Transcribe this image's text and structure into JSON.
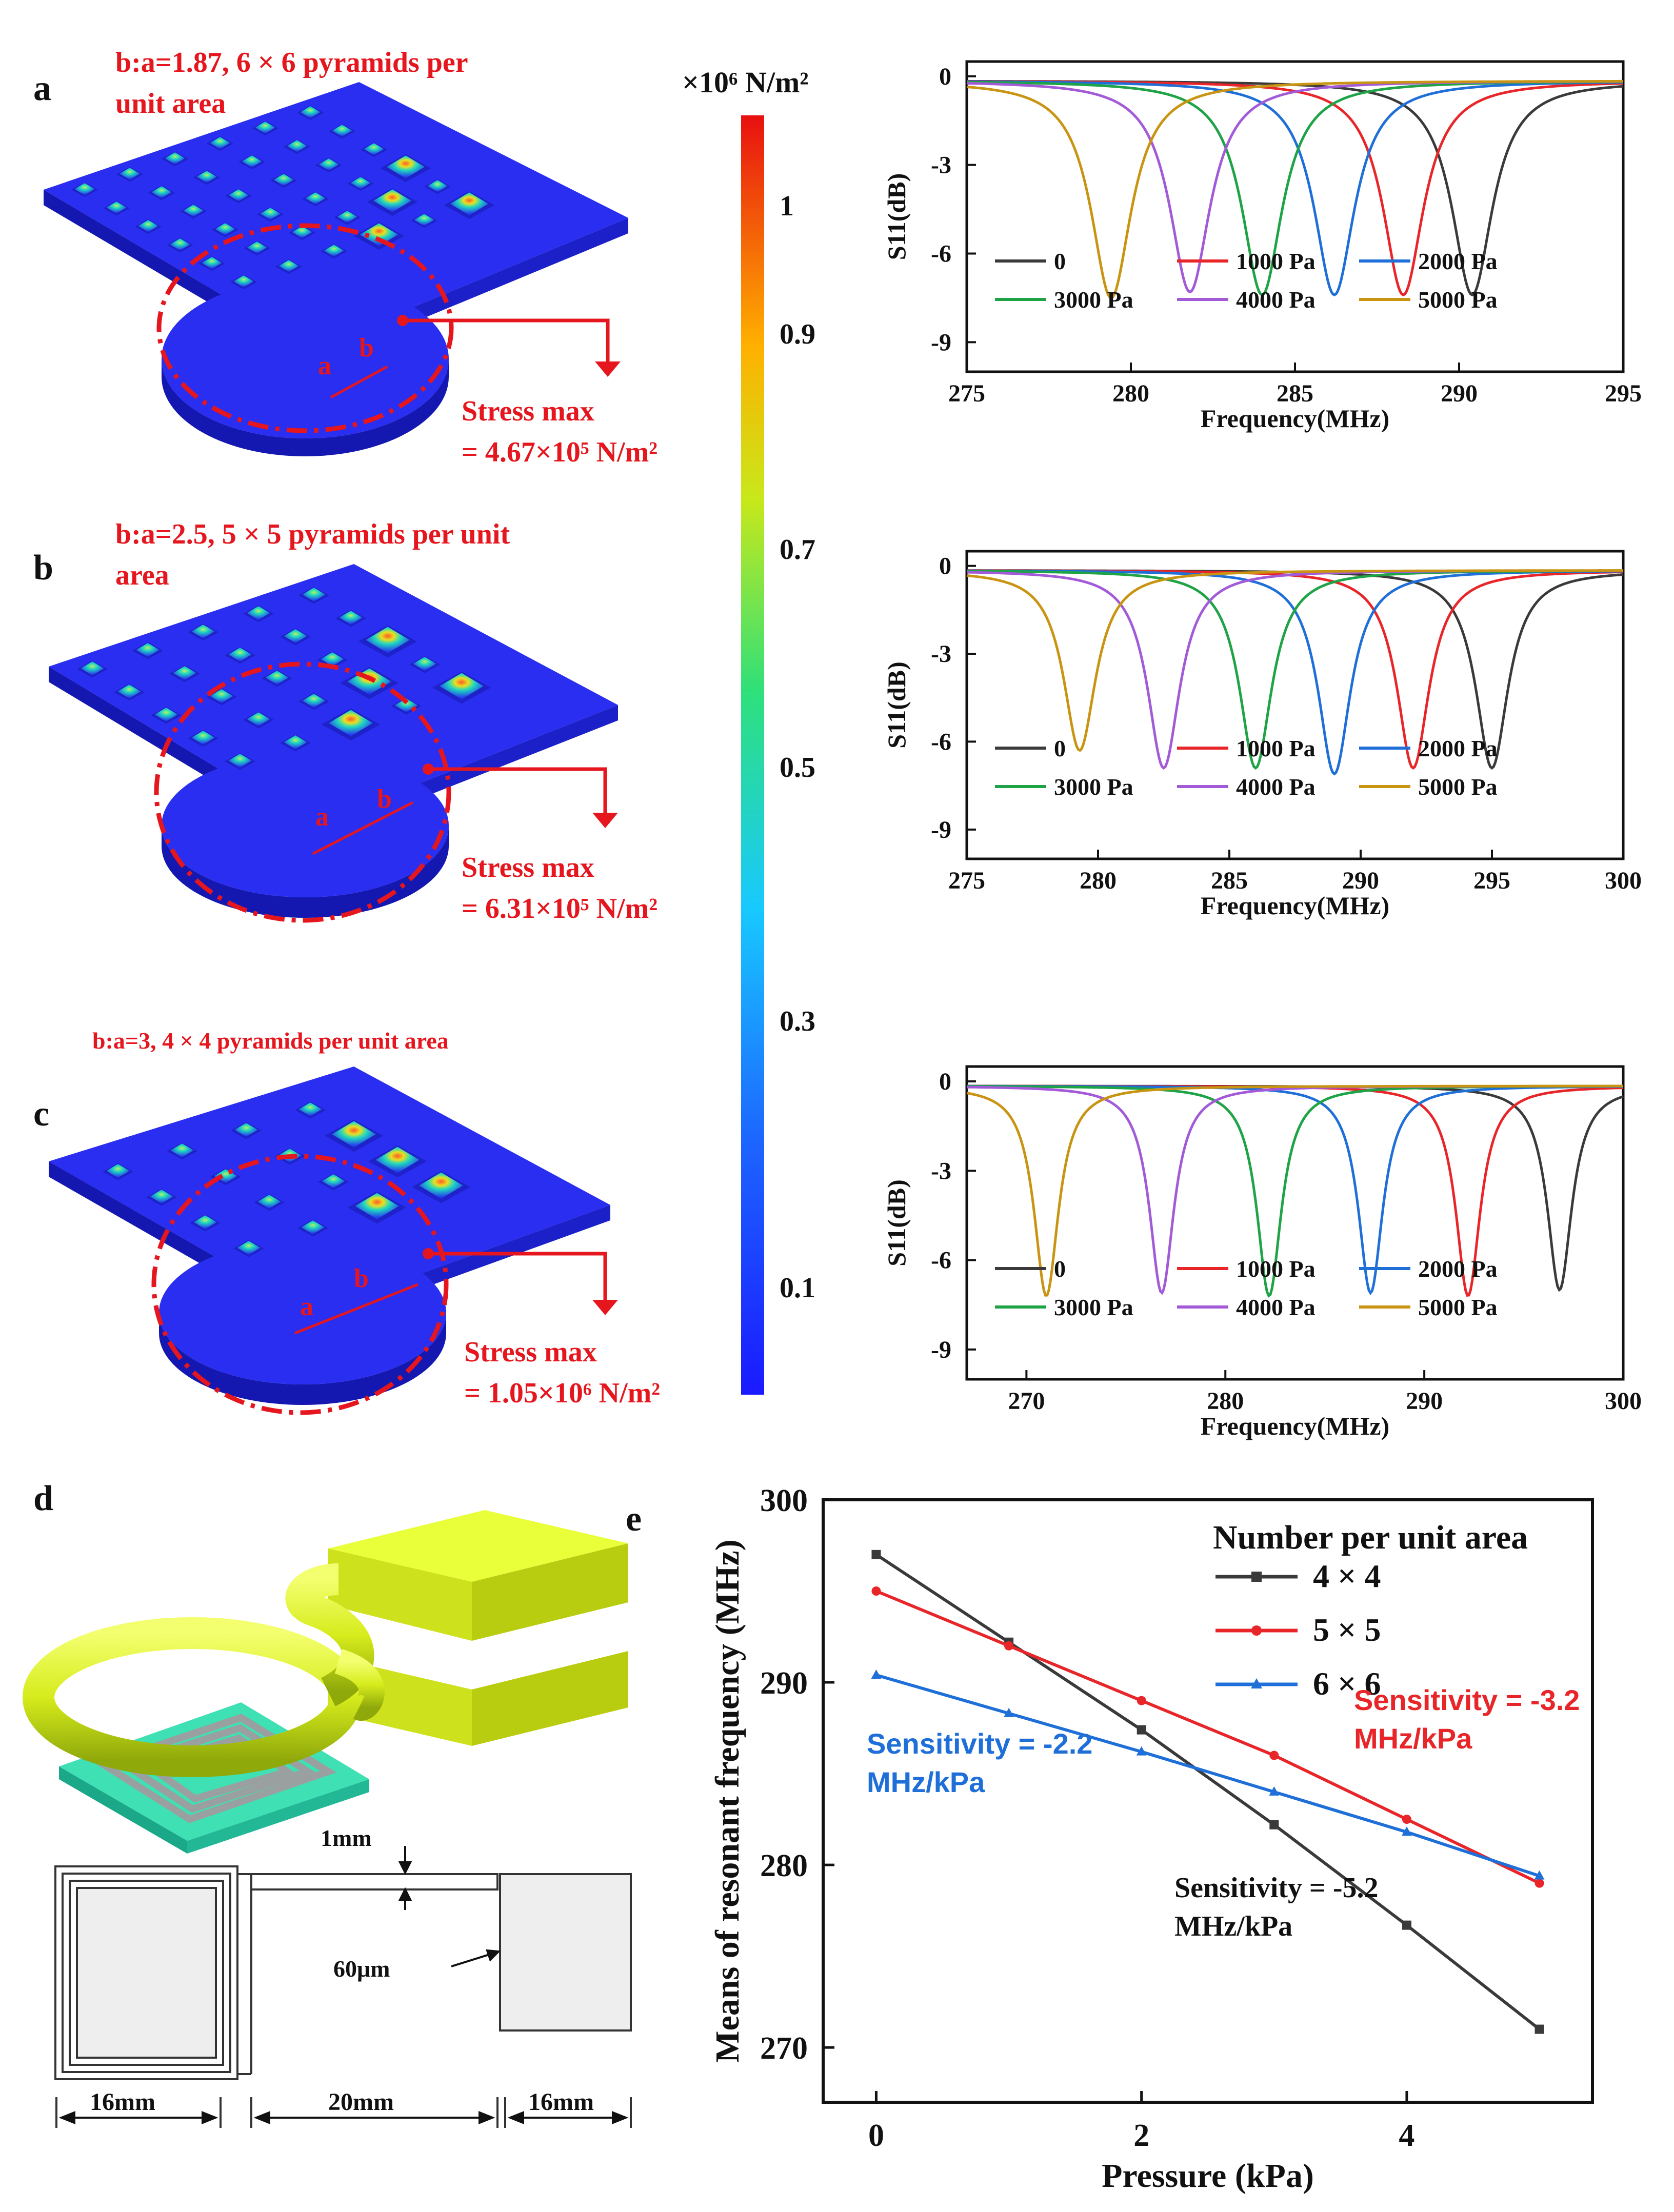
{
  "panels": {
    "a": {
      "letter": "a",
      "title_line1": "b:a=1.87, 6 × 6 pyramids per",
      "title_line2": "unit area",
      "mark_a": "a",
      "mark_b": "b",
      "stress_line1": "Stress max",
      "stress_line2": "= 4.67×10⁵ N/m²"
    },
    "b": {
      "letter": "b",
      "title_line1": "b:a=2.5, 5 × 5 pyramids per unit",
      "title_line2": "area",
      "mark_a": "a",
      "mark_b": "b",
      "stress_line1": "Stress max",
      "stress_line2": "= 6.31×10⁵ N/m²"
    },
    "c": {
      "letter": "c",
      "title_line1": "b:a=3, 4 × 4 pyramids per unit area",
      "mark_a": "a",
      "mark_b": "b",
      "stress_line1": "Stress max",
      "stress_line2": "= 1.05×10⁶ N/m²"
    },
    "d": {
      "letter": "d",
      "dim_1mm": "1mm",
      "dim_60um": "60μm",
      "dim_16mm_left": "16mm",
      "dim_20mm": "20mm",
      "dim_16mm_right": "16mm"
    }
  },
  "colorbar": {
    "title": "×10⁶ N/m²",
    "ticks": [
      "1",
      "0.9",
      "0.7",
      "0.5",
      "0.3",
      "0.1"
    ]
  },
  "chart_data": [
    {
      "id": "s11_a",
      "type": "line",
      "xlabel": "Frequency(MHz)",
      "ylabel": "S11(dB)",
      "xlim": [
        275,
        295
      ],
      "ylim": [
        -10,
        0.5
      ],
      "xticks": [
        275,
        280,
        285,
        290,
        295
      ],
      "yticks": [
        0,
        -3,
        -6,
        -9
      ],
      "series": [
        {
          "name": "0",
          "color": "#3a3a3a",
          "resonance_mhz": 290.4,
          "min_db": -7.4
        },
        {
          "name": "1000 Pa",
          "color": "#e8262a",
          "resonance_mhz": 288.3,
          "min_db": -7.4
        },
        {
          "name": "2000 Pa",
          "color": "#1f6fd8",
          "resonance_mhz": 286.2,
          "min_db": -7.4
        },
        {
          "name": "3000 Pa",
          "color": "#1ea346",
          "resonance_mhz": 284.0,
          "min_db": -7.4
        },
        {
          "name": "4000 Pa",
          "color": "#a35ad8",
          "resonance_mhz": 281.8,
          "min_db": -7.3
        },
        {
          "name": "5000 Pa",
          "color": "#c89412",
          "resonance_mhz": 279.4,
          "min_db": -7.5
        }
      ]
    },
    {
      "id": "s11_b",
      "type": "line",
      "xlabel": "Frequency(MHz)",
      "ylabel": "S11(dB)",
      "xlim": [
        275,
        300
      ],
      "ylim": [
        -10,
        0.5
      ],
      "xticks": [
        275,
        280,
        285,
        290,
        295,
        300
      ],
      "yticks": [
        0,
        -3,
        -6,
        -9
      ],
      "series": [
        {
          "name": "0",
          "color": "#3a3a3a",
          "resonance_mhz": 295.0,
          "min_db": -6.9
        },
        {
          "name": "1000 Pa",
          "color": "#e8262a",
          "resonance_mhz": 292.0,
          "min_db": -6.9
        },
        {
          "name": "2000 Pa",
          "color": "#1f6fd8",
          "resonance_mhz": 289.0,
          "min_db": -7.1
        },
        {
          "name": "3000 Pa",
          "color": "#1ea346",
          "resonance_mhz": 286.0,
          "min_db": -6.9
        },
        {
          "name": "4000 Pa",
          "color": "#a35ad8",
          "resonance_mhz": 282.5,
          "min_db": -6.9
        },
        {
          "name": "5000 Pa",
          "color": "#c89412",
          "resonance_mhz": 279.3,
          "min_db": -6.3
        }
      ]
    },
    {
      "id": "s11_c",
      "type": "line",
      "xlabel": "Frequency(MHz)",
      "ylabel": "S11(dB)",
      "xlim": [
        267,
        300
      ],
      "ylim": [
        -10,
        0.5
      ],
      "xticks": [
        270,
        280,
        290,
        300
      ],
      "yticks": [
        0,
        -3,
        -6,
        -9
      ],
      "series": [
        {
          "name": "0",
          "color": "#3a3a3a",
          "resonance_mhz": 296.8,
          "min_db": -7.0
        },
        {
          "name": "1000 Pa",
          "color": "#e8262a",
          "resonance_mhz": 292.2,
          "min_db": -7.2
        },
        {
          "name": "2000 Pa",
          "color": "#1f6fd8",
          "resonance_mhz": 287.3,
          "min_db": -7.1
        },
        {
          "name": "3000 Pa",
          "color": "#1ea346",
          "resonance_mhz": 282.2,
          "min_db": -7.2
        },
        {
          "name": "4000 Pa",
          "color": "#a35ad8",
          "resonance_mhz": 276.8,
          "min_db": -7.1
        },
        {
          "name": "5000 Pa",
          "color": "#c89412",
          "resonance_mhz": 271.0,
          "min_db": -7.2
        }
      ]
    },
    {
      "id": "freq_vs_pressure",
      "type": "line",
      "panel_letter": "e",
      "xlabel": "Pressure (kPa)",
      "ylabel": "Means of resonant frequency (MHz)",
      "xlim": [
        -0.4,
        5.4
      ],
      "ylim": [
        267,
        300
      ],
      "xticks": [
        0,
        2,
        4
      ],
      "yticks": [
        270,
        280,
        290,
        300
      ],
      "legend_title": "Number per unit area",
      "x": [
        0,
        1,
        2,
        3,
        4,
        5
      ],
      "series": [
        {
          "name": "4 × 4",
          "color": "#3a3a3a",
          "marker": "square",
          "values": [
            297.0,
            292.2,
            287.4,
            282.2,
            276.7,
            271.0
          ]
        },
        {
          "name": "5 × 5",
          "color": "#e8262a",
          "marker": "circle",
          "values": [
            295.0,
            292.0,
            289.0,
            286.0,
            282.5,
            279.0
          ]
        },
        {
          "name": "6 × 6",
          "color": "#1f6fd8",
          "marker": "triangle",
          "values": [
            290.4,
            288.3,
            286.2,
            284.0,
            281.8,
            279.4
          ]
        }
      ],
      "annotations": [
        {
          "line1": "Sensitivity = -2.2",
          "line2": "MHz/kPa",
          "color": "#1f6fd8"
        },
        {
          "line1": "Sensitivity = -3.2",
          "line2": "MHz/kPa",
          "color": "#e8262a"
        },
        {
          "line1": "Sensitivity = -5.2",
          "line2": "MHz/kPa",
          "color": "#111111"
        }
      ]
    }
  ]
}
